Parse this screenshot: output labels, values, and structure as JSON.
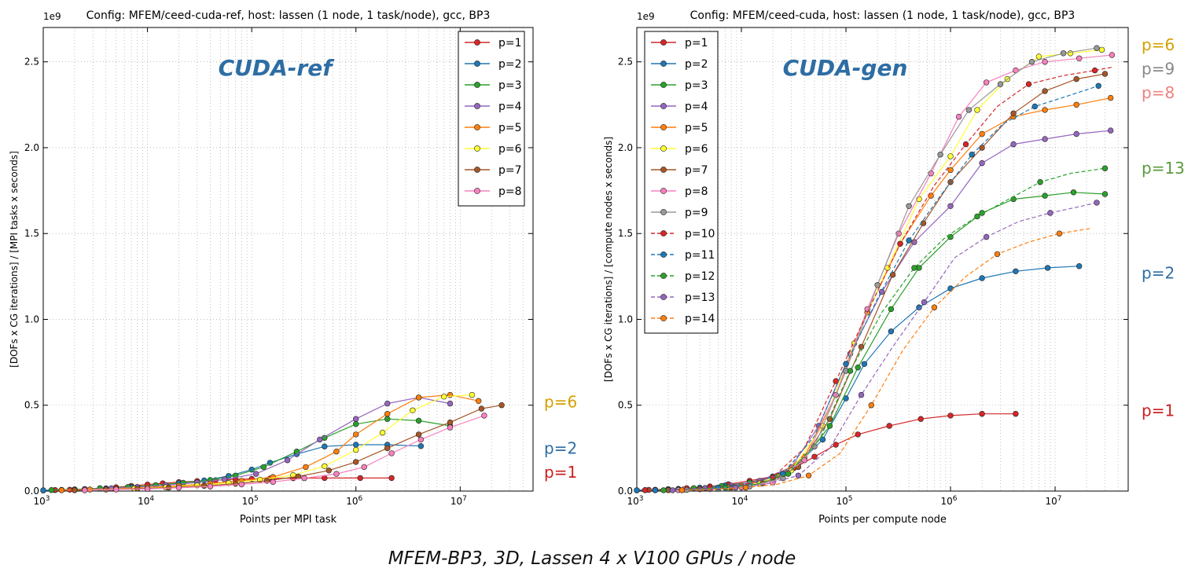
{
  "caption": "MFEM-BP3, 3D, Lassen 4 x V100 GPUs / node",
  "colors": {
    "p1": "#d62728",
    "p2": "#1f77b4",
    "p3": "#2ca02c",
    "p4": "#9467bd",
    "p5": "#ff7f0e",
    "p6": "#ffff33",
    "p7": "#a65628",
    "p8": "#f781bf",
    "p9": "#999999",
    "p10": "#d62728",
    "p11": "#1f77b4",
    "p12": "#2ca02c",
    "p13": "#9467bd",
    "p14": "#ff7f0e",
    "big_title_color": "#2e6da4",
    "label_p6": "#d4a000",
    "label_p2": "#2e6da4",
    "label_p1": "#cc1f1f",
    "label_p9": "#888888",
    "label_p8": "#f08080",
    "label_p13": "#5a9a3a"
  },
  "chart_data": [
    {
      "type": "line",
      "title": "Config: MFEM/ceed-cuda-ref, host: lassen (1 node, 1 task/node), gcc, BP3",
      "big_title": "CUDA-ref",
      "xlabel": "Points per MPI task",
      "ylabel": "[DOFs x CG iterations] / [MPI tasks x seconds]",
      "xscale": "log",
      "xlim": [
        1000,
        50000000
      ],
      "ylim": [
        0,
        2.7
      ],
      "y_multiplier": "1e9",
      "x_ticks": [
        "10^3",
        "10^4",
        "10^5",
        "10^6",
        "10^7"
      ],
      "y_ticks": [
        "0.0",
        "0.5",
        "1.0",
        "1.5",
        "2.0",
        "2.5"
      ],
      "grid": true,
      "legend_position": "top-right",
      "right_labels": [
        {
          "text": "p=6",
          "y": 0.52,
          "color_key": "label_p6"
        },
        {
          "text": "p=2",
          "y": 0.25,
          "color_key": "label_p2"
        },
        {
          "text": "p=1",
          "y": 0.11,
          "color_key": "label_p1"
        }
      ],
      "series": [
        {
          "name": "p=1",
          "color_key": "p1",
          "dashed": false,
          "x": [
            1000,
            1300,
            1800,
            2500,
            3500,
            5000,
            7000,
            10000,
            14000,
            20000,
            30000,
            45000,
            70000,
            100000,
            150000,
            250000,
            500000,
            1100000,
            2200000
          ],
          "y": [
            0.004,
            0.006,
            0.008,
            0.012,
            0.016,
            0.022,
            0.03,
            0.038,
            0.045,
            0.052,
            0.058,
            0.063,
            0.068,
            0.071,
            0.073,
            0.075,
            0.076,
            0.076,
            0.076
          ]
        },
        {
          "name": "p=2",
          "color_key": "p2",
          "dashed": false,
          "x": [
            1000,
            1500,
            2500,
            4000,
            7000,
            12000,
            20000,
            35000,
            60000,
            100000,
            150000,
            270000,
            500000,
            1000000,
            2000000,
            4200000
          ],
          "y": [
            0.004,
            0.007,
            0.011,
            0.016,
            0.024,
            0.034,
            0.046,
            0.062,
            0.088,
            0.125,
            0.165,
            0.215,
            0.26,
            0.27,
            0.27,
            0.262
          ]
        },
        {
          "name": "p=3",
          "color_key": "p3",
          "dashed": false,
          "x": [
            1200,
            2000,
            3500,
            6500,
            12000,
            22000,
            40000,
            70000,
            130000,
            270000,
            500000,
            1000000,
            2000000,
            4000000,
            8000000
          ],
          "y": [
            0.006,
            0.01,
            0.016,
            0.024,
            0.035,
            0.048,
            0.064,
            0.09,
            0.14,
            0.23,
            0.31,
            0.39,
            0.42,
            0.41,
            0.38
          ]
        },
        {
          "name": "p=4",
          "color_key": "p4",
          "dashed": false,
          "x": [
            1500,
            2500,
            4500,
            8000,
            15000,
            30000,
            55000,
            110000,
            220000,
            450000,
            1000000,
            2000000,
            4000000,
            8000000
          ],
          "y": [
            0.006,
            0.01,
            0.016,
            0.024,
            0.035,
            0.05,
            0.068,
            0.1,
            0.18,
            0.3,
            0.42,
            0.51,
            0.545,
            0.51
          ]
        },
        {
          "name": "p=5",
          "color_key": "p5",
          "dashed": false,
          "x": [
            1500,
            2800,
            5000,
            10000,
            20000,
            40000,
            80000,
            160000,
            330000,
            650000,
            1000000,
            2000000,
            4000000,
            8000000,
            15000000
          ],
          "y": [
            0.005,
            0.009,
            0.014,
            0.021,
            0.031,
            0.044,
            0.06,
            0.082,
            0.14,
            0.23,
            0.33,
            0.45,
            0.545,
            0.56,
            0.525
          ]
        },
        {
          "name": "p=6",
          "color_key": "p6",
          "dashed": false,
          "x": [
            2000,
            4000,
            7500,
            15000,
            30000,
            60000,
            120000,
            250000,
            500000,
            1000000,
            1800000,
            3500000,
            7000000,
            13000000
          ],
          "y": [
            0.006,
            0.01,
            0.015,
            0.022,
            0.033,
            0.047,
            0.066,
            0.093,
            0.145,
            0.24,
            0.34,
            0.47,
            0.55,
            0.56
          ]
        },
        {
          "name": "p=7",
          "color_key": "p7",
          "dashed": false,
          "x": [
            2000,
            4000,
            8000,
            16000,
            35000,
            70000,
            140000,
            280000,
            550000,
            1000000,
            2000000,
            4000000,
            8000000,
            16000000,
            25000000
          ],
          "y": [
            0.005,
            0.009,
            0.014,
            0.02,
            0.03,
            0.043,
            0.06,
            0.085,
            0.12,
            0.17,
            0.25,
            0.33,
            0.4,
            0.48,
            0.5
          ]
        },
        {
          "name": "p=8",
          "color_key": "p8",
          "dashed": false,
          "x": [
            2500,
            5000,
            10000,
            20000,
            40000,
            80000,
            160000,
            320000,
            650000,
            1200000,
            2200000,
            4200000,
            8000000,
            17000000
          ],
          "y": [
            0.005,
            0.009,
            0.013,
            0.019,
            0.027,
            0.039,
            0.053,
            0.075,
            0.1,
            0.14,
            0.22,
            0.3,
            0.37,
            0.44
          ]
        }
      ]
    },
    {
      "type": "line",
      "title": "Config: MFEM/ceed-cuda, host: lassen (1 node, 1 task/node), gcc, BP3",
      "big_title": "CUDA-gen",
      "xlabel": "Points per compute node",
      "ylabel": "[DOFs x CG iterations] / [compute nodes x seconds]",
      "xscale": "log",
      "xlim": [
        1000,
        50000000
      ],
      "ylim": [
        0,
        2.7
      ],
      "y_multiplier": "1e9",
      "x_ticks": [
        "10^3",
        "10^4",
        "10^5",
        "10^6",
        "10^7"
      ],
      "y_ticks": [
        "0.0",
        "0.5",
        "1.0",
        "1.5",
        "2.0",
        "2.5"
      ],
      "grid": true,
      "legend_position": "top-left",
      "right_labels": [
        {
          "text": "p=6",
          "y": 2.6,
          "color_key": "label_p6"
        },
        {
          "text": "p=9",
          "y": 2.46,
          "color_key": "label_p9"
        },
        {
          "text": "p=8",
          "y": 2.32,
          "color_key": "label_p8"
        },
        {
          "text": "p=13",
          "y": 1.88,
          "color_key": "label_p13"
        },
        {
          "text": "p=2",
          "y": 1.27,
          "color_key": "label_p2"
        },
        {
          "text": "p=1",
          "y": 0.47,
          "color_key": "label_p1"
        }
      ],
      "series": [
        {
          "name": "p=1",
          "color_key": "p1",
          "dashed": false,
          "x": [
            1000,
            1300,
            2000,
            3000,
            5000,
            7500,
            12000,
            20000,
            32000,
            50000,
            80000,
            130000,
            260000,
            520000,
            1000000,
            2000000,
            4200000
          ],
          "y": [
            0.004,
            0.007,
            0.011,
            0.017,
            0.027,
            0.04,
            0.06,
            0.085,
            0.135,
            0.2,
            0.27,
            0.33,
            0.38,
            0.42,
            0.44,
            0.45,
            0.45
          ]
        },
        {
          "name": "p=2",
          "color_key": "p2",
          "dashed": false,
          "x": [
            1000,
            1500,
            2500,
            4000,
            7000,
            12000,
            20000,
            35000,
            60000,
            100000,
            150000,
            270000,
            500000,
            1000000,
            2000000,
            4200000,
            8500000,
            17000000
          ],
          "y": [
            0.005,
            0.008,
            0.013,
            0.02,
            0.033,
            0.05,
            0.085,
            0.16,
            0.3,
            0.54,
            0.74,
            0.93,
            1.07,
            1.18,
            1.24,
            1.28,
            1.3,
            1.31
          ]
        },
        {
          "name": "p=3",
          "color_key": "p3",
          "dashed": false,
          "x": [
            1200,
            2000,
            3500,
            6500,
            12000,
            22000,
            40000,
            70000,
            130000,
            270000,
            500000,
            1000000,
            2000000,
            4000000,
            8000000,
            15000000,
            30000000
          ],
          "y": [
            0.006,
            0.01,
            0.017,
            0.03,
            0.05,
            0.09,
            0.19,
            0.38,
            0.72,
            1.06,
            1.3,
            1.48,
            1.62,
            1.7,
            1.72,
            1.74,
            1.73
          ]
        },
        {
          "name": "p=4",
          "color_key": "p4",
          "dashed": false,
          "x": [
            1500,
            2500,
            4500,
            8000,
            15000,
            30000,
            55000,
            110000,
            220000,
            450000,
            1000000,
            2000000,
            4000000,
            8000000,
            16000000,
            34000000
          ],
          "y": [
            0.006,
            0.01,
            0.018,
            0.032,
            0.06,
            0.14,
            0.38,
            0.8,
            1.16,
            1.45,
            1.66,
            1.91,
            2.02,
            2.05,
            2.08,
            2.1
          ]
        },
        {
          "name": "p=5",
          "color_key": "p5",
          "dashed": false,
          "x": [
            1500,
            2800,
            5000,
            10000,
            20000,
            40000,
            80000,
            160000,
            330000,
            650000,
            1000000,
            2000000,
            4000000,
            8000000,
            16000000,
            34000000
          ],
          "y": [
            0.005,
            0.009,
            0.016,
            0.03,
            0.07,
            0.2,
            0.56,
            1.04,
            1.44,
            1.72,
            1.87,
            2.08,
            2.18,
            2.22,
            2.25,
            2.29
          ]
        },
        {
          "name": "p=6",
          "color_key": "p6",
          "dashed": false,
          "x": [
            2000,
            4000,
            7500,
            15000,
            30000,
            60000,
            120000,
            250000,
            500000,
            1000000,
            1800000,
            3500000,
            7000000,
            14000000,
            28000000
          ],
          "y": [
            0.006,
            0.011,
            0.02,
            0.045,
            0.12,
            0.38,
            0.86,
            1.3,
            1.7,
            1.95,
            2.22,
            2.4,
            2.53,
            2.55,
            2.57
          ]
        },
        {
          "name": "p=7",
          "color_key": "p7",
          "dashed": false,
          "x": [
            2000,
            4000,
            8000,
            16000,
            35000,
            70000,
            140000,
            280000,
            550000,
            1000000,
            2000000,
            4000000,
            8000000,
            16000000,
            30000000
          ],
          "y": [
            0.006,
            0.011,
            0.02,
            0.045,
            0.14,
            0.42,
            0.84,
            1.26,
            1.56,
            1.8,
            2.0,
            2.2,
            2.33,
            2.4,
            2.43
          ]
        },
        {
          "name": "p=8",
          "color_key": "p8",
          "dashed": false,
          "x": [
            2500,
            5000,
            10000,
            20000,
            40000,
            80000,
            160000,
            320000,
            650000,
            1200000,
            2200000,
            4200000,
            8000000,
            17000000,
            35000000
          ],
          "y": [
            0.006,
            0.011,
            0.022,
            0.05,
            0.18,
            0.56,
            1.06,
            1.5,
            1.85,
            2.18,
            2.38,
            2.45,
            2.5,
            2.52,
            2.54
          ]
        },
        {
          "name": "p=9",
          "color_key": "p9",
          "dashed": false,
          "x": [
            3000,
            6000,
            12000,
            25000,
            50000,
            100000,
            200000,
            400000,
            800000,
            1500000,
            3000000,
            6000000,
            12000000,
            25000000
          ],
          "y": [
            0.007,
            0.013,
            0.027,
            0.075,
            0.26,
            0.7,
            1.2,
            1.66,
            1.96,
            2.22,
            2.37,
            2.5,
            2.55,
            2.58
          ]
        },
        {
          "name": "p=10",
          "color_key": "p10",
          "dashed": true,
          "x": [
            1200,
            2500,
            5000,
            10000,
            20000,
            40000,
            80000,
            160000,
            330000,
            700000,
            1400000,
            2800000,
            5600000,
            12000000,
            24000000,
            36000000
          ],
          "y": [
            0.005,
            0.01,
            0.018,
            0.035,
            0.08,
            0.25,
            0.64,
            1.04,
            1.44,
            1.78,
            2.02,
            2.24,
            2.37,
            2.42,
            2.45,
            2.47
          ]
        },
        {
          "name": "p=11",
          "color_key": "p11",
          "dashed": true,
          "x": [
            1500,
            3000,
            6000,
            12000,
            25000,
            50000,
            100000,
            200000,
            400000,
            800000,
            1600000,
            3200000,
            6400000,
            13000000,
            26000000
          ],
          "y": [
            0.005,
            0.01,
            0.02,
            0.04,
            0.1,
            0.32,
            0.74,
            1.12,
            1.46,
            1.72,
            1.96,
            2.14,
            2.24,
            2.3,
            2.36
          ]
        },
        {
          "name": "p=12",
          "color_key": "p12",
          "dashed": true,
          "x": [
            1800,
            3600,
            7000,
            14000,
            28000,
            56000,
            110000,
            220000,
            450000,
            900000,
            1800000,
            3600000,
            7200000,
            14000000,
            30000000
          ],
          "y": [
            0.005,
            0.01,
            0.02,
            0.04,
            0.1,
            0.3,
            0.7,
            1.04,
            1.3,
            1.48,
            1.6,
            1.7,
            1.8,
            1.85,
            1.88
          ]
        },
        {
          "name": "p=13",
          "color_key": "p13",
          "dashed": true,
          "x": [
            2200,
            4400,
            8800,
            17000,
            35000,
            70000,
            140000,
            280000,
            560000,
            1100000,
            2200000,
            4500000,
            9000000,
            18000000,
            25000000
          ],
          "y": [
            0.005,
            0.01,
            0.02,
            0.04,
            0.09,
            0.25,
            0.56,
            0.84,
            1.1,
            1.36,
            1.48,
            1.57,
            1.62,
            1.66,
            1.68
          ]
        },
        {
          "name": "p=14",
          "color_key": "p14",
          "dashed": true,
          "x": [
            2700,
            5400,
            11000,
            22000,
            44000,
            88000,
            175000,
            350000,
            700000,
            1400000,
            2800000,
            5600000,
            11000000,
            22000000
          ],
          "y": [
            0.005,
            0.01,
            0.02,
            0.04,
            0.09,
            0.22,
            0.5,
            0.82,
            1.07,
            1.25,
            1.38,
            1.45,
            1.5,
            1.53
          ]
        }
      ]
    }
  ]
}
